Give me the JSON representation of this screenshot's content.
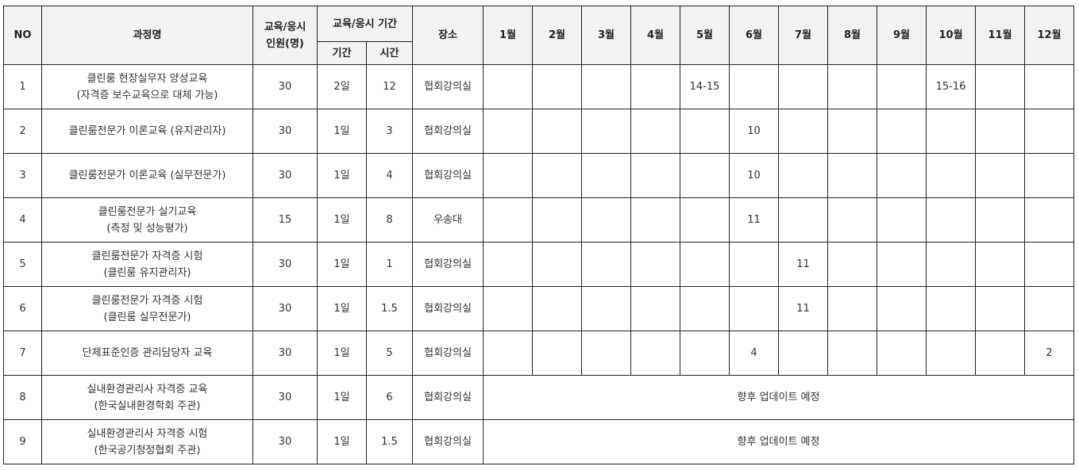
{
  "header": {
    "no": "NO",
    "course": "과정명",
    "capacity_line1": "교육/응시",
    "capacity_line2": "인원(명)",
    "period_group": "교육/응시 기간",
    "days": "기간",
    "hours": "시간",
    "place": "장소",
    "months": [
      "1월",
      "2월",
      "3월",
      "4월",
      "5월",
      "6월",
      "7월",
      "8월",
      "9월",
      "10월",
      "11월",
      "12월"
    ]
  },
  "rows": [
    {
      "no": "1",
      "course": [
        "클린룸 현장실무자 양성교육",
        "(자격증 보수교육으로 대체 가능)"
      ],
      "capacity": "30",
      "days": "2일",
      "hours": "12",
      "place": "협회강의실",
      "months": [
        "",
        "",
        "",
        "",
        "14-15",
        "",
        "",
        "",
        "",
        "15-16",
        "",
        ""
      ]
    },
    {
      "no": "2",
      "course": [
        "클린룸전문가 이론교육 (유지관리자)",
        ""
      ],
      "capacity": "30",
      "days": "1일",
      "hours": "3",
      "place": "협회강의실",
      "months": [
        "",
        "",
        "",
        "",
        "",
        "10",
        "",
        "",
        "",
        "",
        "",
        ""
      ]
    },
    {
      "no": "3",
      "course": [
        "클린룸전문가 이론교육 (실무전문가)",
        ""
      ],
      "capacity": "30",
      "days": "1일",
      "hours": "4",
      "place": "협회강의실",
      "months": [
        "",
        "",
        "",
        "",
        "",
        "10",
        "",
        "",
        "",
        "",
        "",
        ""
      ]
    },
    {
      "no": "4",
      "course": [
        "클린룸전문가 실기교육",
        "(측정 및 성능평가)"
      ],
      "capacity": "15",
      "days": "1일",
      "hours": "8",
      "place": "우송대",
      "months": [
        "",
        "",
        "",
        "",
        "",
        "11",
        "",
        "",
        "",
        "",
        "",
        ""
      ]
    },
    {
      "no": "5",
      "course": [
        "클린룸전문가 자격증 시험",
        "(클린룸 유지관리자)"
      ],
      "capacity": "30",
      "days": "1일",
      "hours": "1",
      "place": "협회강의실",
      "months": [
        "",
        "",
        "",
        "",
        "",
        "",
        "11",
        "",
        "",
        "",
        "",
        ""
      ]
    },
    {
      "no": "6",
      "course": [
        "클린룸전문가 자격증 시험",
        "(클린룸 실무전문가)"
      ],
      "capacity": "30",
      "days": "1일",
      "hours": "1.5",
      "place": "협회강의실",
      "months": [
        "",
        "",
        "",
        "",
        "",
        "",
        "11",
        "",
        "",
        "",
        "",
        ""
      ]
    },
    {
      "no": "7",
      "course": [
        "단체표준인증 관리담당자 교육",
        ""
      ],
      "capacity": "30",
      "days": "1일",
      "hours": "5",
      "place": "협회강의실",
      "months": [
        "",
        "",
        "",
        "",
        "",
        "4",
        "",
        "",
        "",
        "",
        "",
        "2"
      ]
    },
    {
      "no": "8",
      "course": [
        "실내환경관리사 자격증 교육",
        "(한국실내환경학회 주관)"
      ],
      "capacity": "30",
      "days": "1일",
      "hours": "6",
      "place": "협회강의실",
      "merged_note": "향후 업데이트 예정"
    },
    {
      "no": "9",
      "course": [
        "실내환경관리사 자격증 시험",
        "(한국공기청정협회 주관)"
      ],
      "capacity": "30",
      "days": "1일",
      "hours": "1.5",
      "place": "협회강의실",
      "merged_note": "향후 업데이트 예정"
    }
  ]
}
